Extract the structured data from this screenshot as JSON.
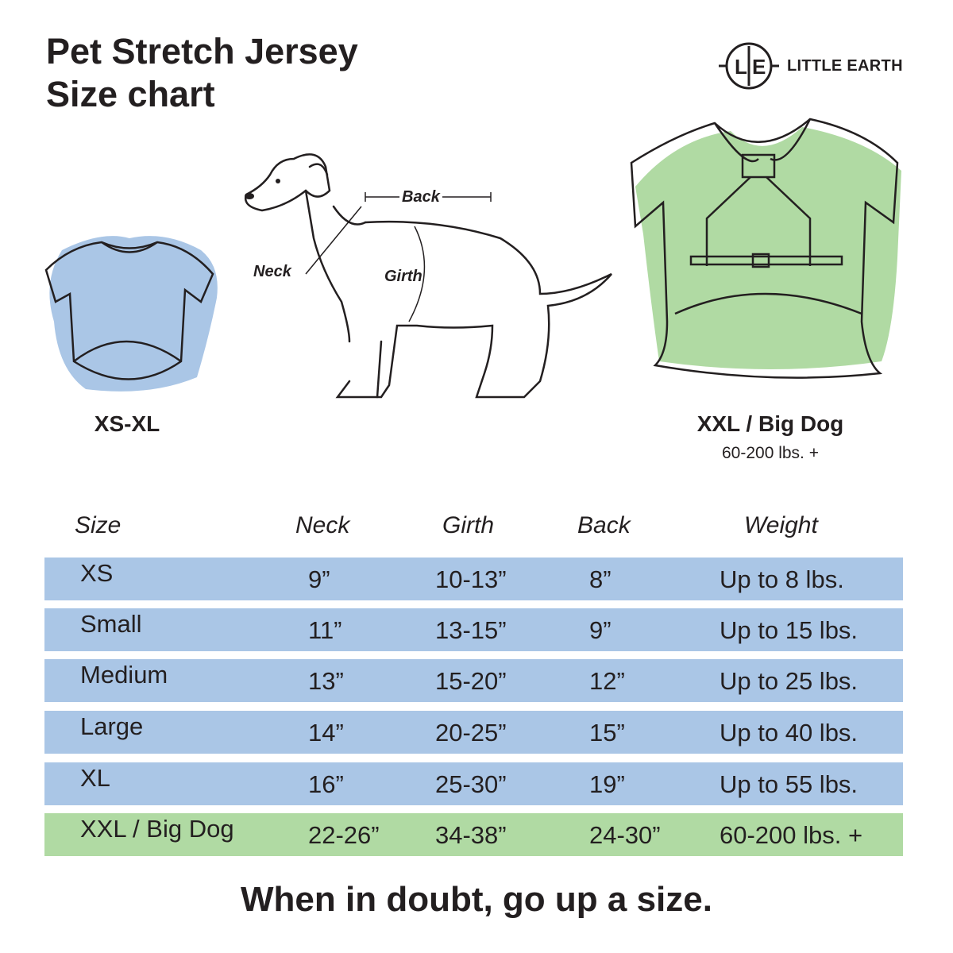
{
  "title": {
    "line1": "Pet Stretch Jersey",
    "line2": "Size chart"
  },
  "brand": {
    "monogram_left": "L",
    "monogram_right": "E",
    "name": "LITTLE EARTH"
  },
  "illustrations": {
    "small_shirt": {
      "label": "XS-XL",
      "color": "#aac6e6",
      "icon": "shirt-icon"
    },
    "dog": {
      "icon": "dog-measurement-icon",
      "labels": {
        "back": "Back",
        "neck": "Neck",
        "girth": "Girth"
      }
    },
    "big_shirt": {
      "label": "XXL / Big Dog",
      "sublabel": "60-200 lbs. +",
      "color": "#b0daa3",
      "icon": "harness-shirt-icon"
    }
  },
  "table": {
    "headers": [
      "Size",
      "Neck",
      "Girth",
      "Back",
      "Weight"
    ],
    "rows": [
      {
        "cells": [
          "XS",
          "9”",
          "10-13”",
          "8”",
          "Up to 8 lbs."
        ],
        "color": "#aac6e6"
      },
      {
        "cells": [
          "Small",
          "11”",
          "13-15”",
          "9”",
          "Up to 15 lbs."
        ],
        "color": "#aac6e6"
      },
      {
        "cells": [
          "Medium",
          "13”",
          "15-20”",
          "12”",
          "Up to 25 lbs."
        ],
        "color": "#aac6e6"
      },
      {
        "cells": [
          "Large",
          "14”",
          "20-25”",
          "15”",
          "Up to 40 lbs."
        ],
        "color": "#aac6e6"
      },
      {
        "cells": [
          "XL",
          "16”",
          "25-30”",
          "19”",
          "Up to 55 lbs."
        ],
        "color": "#aac6e6"
      },
      {
        "cells": [
          "XXL / Big Dog",
          "22-26”",
          "34-38”",
          "24-30”",
          "60-200 lbs. +"
        ],
        "color": "#b0daa3"
      }
    ]
  },
  "footer": "When in doubt, go up a size."
}
